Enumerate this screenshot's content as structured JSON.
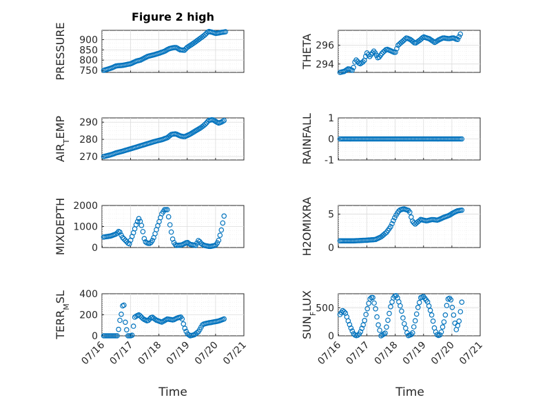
{
  "title": "Figure 2 high",
  "xlabel": "Time",
  "x_ticks": [
    "07/16",
    "07/17",
    "07/18",
    "07/19",
    "07/20",
    "07/21"
  ],
  "colors": {
    "marker": "#0072bd",
    "axes": "#262626",
    "grid": "#dcdcdc"
  },
  "chart_data": [
    {
      "type": "scatter",
      "ylabel": "PRESSURE",
      "ylim": [
        740,
        945
      ],
      "yticks": [
        750,
        800,
        850,
        900
      ],
      "knots": [
        [
          16.05,
          750
        ],
        [
          16.3,
          760
        ],
        [
          16.5,
          772
        ],
        [
          16.7,
          774
        ],
        [
          17.0,
          782
        ],
        [
          17.2,
          795
        ],
        [
          17.35,
          800
        ],
        [
          17.6,
          818
        ],
        [
          17.8,
          825
        ],
        [
          18.0,
          833
        ],
        [
          18.2,
          843
        ],
        [
          18.35,
          855
        ],
        [
          18.5,
          860
        ],
        [
          18.6,
          862
        ],
        [
          18.75,
          850
        ],
        [
          18.9,
          848
        ],
        [
          19.0,
          862
        ],
        [
          19.2,
          880
        ],
        [
          19.4,
          900
        ],
        [
          19.6,
          920
        ],
        [
          19.75,
          940
        ],
        [
          19.9,
          935
        ],
        [
          20.0,
          930
        ],
        [
          20.1,
          932
        ],
        [
          20.2,
          935
        ],
        [
          20.35,
          938
        ]
      ]
    },
    {
      "type": "scatter",
      "ylabel": "THETA",
      "ylim": [
        293.1,
        297.6
      ],
      "yticks": [
        294,
        296
      ],
      "knots": [
        [
          16.05,
          293.1
        ],
        [
          16.2,
          293.2
        ],
        [
          16.35,
          293.5
        ],
        [
          16.5,
          293.3
        ],
        [
          16.6,
          294.5
        ],
        [
          16.75,
          294.0
        ],
        [
          16.9,
          294.3
        ],
        [
          17.0,
          295.2
        ],
        [
          17.1,
          294.8
        ],
        [
          17.25,
          295.4
        ],
        [
          17.4,
          294.6
        ],
        [
          17.55,
          295.2
        ],
        [
          17.7,
          295.6
        ],
        [
          17.85,
          295.4
        ],
        [
          18.0,
          295.2
        ],
        [
          18.1,
          296.0
        ],
        [
          18.25,
          296.4
        ],
        [
          18.4,
          296.8
        ],
        [
          18.55,
          296.6
        ],
        [
          18.7,
          296.2
        ],
        [
          18.85,
          296.5
        ],
        [
          19.0,
          296.9
        ],
        [
          19.2,
          296.7
        ],
        [
          19.4,
          296.3
        ],
        [
          19.55,
          296.6
        ],
        [
          19.7,
          296.8
        ],
        [
          19.9,
          296.7
        ],
        [
          20.05,
          296.8
        ],
        [
          20.2,
          296.6
        ],
        [
          20.3,
          297.2
        ]
      ]
    },
    {
      "type": "scatter",
      "ylabel": "AIR_TEMP",
      "ylabel_main": "AIR",
      "ylabel_sub": "T",
      "ylabel_tail": "EMP",
      "ylim": [
        268,
        292.5
      ],
      "yticks": [
        270,
        280,
        290
      ],
      "knots": [
        [
          16.05,
          270
        ],
        [
          16.3,
          271
        ],
        [
          16.5,
          272.2
        ],
        [
          16.7,
          273
        ],
        [
          17.0,
          274.5
        ],
        [
          17.3,
          276
        ],
        [
          17.6,
          277.5
        ],
        [
          17.9,
          279
        ],
        [
          18.1,
          279.8
        ],
        [
          18.3,
          281
        ],
        [
          18.45,
          283
        ],
        [
          18.6,
          283.2
        ],
        [
          18.75,
          282
        ],
        [
          18.9,
          281.5
        ],
        [
          19.1,
          283
        ],
        [
          19.3,
          285
        ],
        [
          19.5,
          287
        ],
        [
          19.65,
          289
        ],
        [
          19.75,
          291
        ],
        [
          19.9,
          291.5
        ],
        [
          20.0,
          290.5
        ],
        [
          20.1,
          289.5
        ],
        [
          20.2,
          290
        ],
        [
          20.3,
          291
        ]
      ]
    },
    {
      "type": "scatter",
      "ylabel": "RAINFALL",
      "ylim": [
        -1,
        1
      ],
      "yticks": [
        -1,
        0,
        1
      ],
      "knots": [
        [
          16.05,
          0
        ],
        [
          20.35,
          0
        ]
      ]
    },
    {
      "type": "scatter",
      "ylabel": "MIXDEPTH",
      "ylim": [
        0,
        2000
      ],
      "yticks": [
        0,
        1000,
        2000
      ],
      "knots": [
        [
          16.05,
          500
        ],
        [
          16.3,
          550
        ],
        [
          16.5,
          650
        ],
        [
          16.6,
          800
        ],
        [
          16.7,
          500
        ],
        [
          16.85,
          300
        ],
        [
          16.95,
          150
        ],
        [
          17.1,
          700
        ],
        [
          17.2,
          1100
        ],
        [
          17.3,
          1400
        ],
        [
          17.4,
          1000
        ],
        [
          17.5,
          300
        ],
        [
          17.6,
          200
        ],
        [
          17.7,
          200
        ],
        [
          17.8,
          400
        ],
        [
          17.9,
          800
        ],
        [
          18.0,
          1200
        ],
        [
          18.1,
          1600
        ],
        [
          18.2,
          1800
        ],
        [
          18.3,
          1800
        ],
        [
          18.4,
          1000
        ],
        [
          18.5,
          300
        ],
        [
          18.6,
          100
        ],
        [
          18.8,
          120
        ],
        [
          19.0,
          250
        ],
        [
          19.1,
          150
        ],
        [
          19.3,
          100
        ],
        [
          19.4,
          350
        ],
        [
          19.5,
          180
        ],
        [
          19.6,
          100
        ],
        [
          19.8,
          50
        ],
        [
          20.0,
          100
        ],
        [
          20.1,
          300
        ],
        [
          20.2,
          800
        ],
        [
          20.3,
          1500
        ]
      ]
    },
    {
      "type": "scatter",
      "ylabel": "H2OMIXRA",
      "ylim": [
        0,
        6.3
      ],
      "yticks": [
        0,
        5
      ],
      "knots": [
        [
          16.05,
          1
        ],
        [
          16.5,
          1
        ],
        [
          17.0,
          1.1
        ],
        [
          17.3,
          1.2
        ],
        [
          17.5,
          1.6
        ],
        [
          17.7,
          2.3
        ],
        [
          17.85,
          3.2
        ],
        [
          17.95,
          4.2
        ],
        [
          18.05,
          5.0
        ],
        [
          18.15,
          5.6
        ],
        [
          18.3,
          5.8
        ],
        [
          18.5,
          5.5
        ],
        [
          18.6,
          4.0
        ],
        [
          18.7,
          3.5
        ],
        [
          18.9,
          4.2
        ],
        [
          19.1,
          4.0
        ],
        [
          19.3,
          4.2
        ],
        [
          19.5,
          4.1
        ],
        [
          19.7,
          4.5
        ],
        [
          19.9,
          4.8
        ],
        [
          20.05,
          5.2
        ],
        [
          20.2,
          5.5
        ],
        [
          20.35,
          5.6
        ]
      ]
    },
    {
      "type": "scatter",
      "ylabel": "TERR_MSL",
      "ylabel_main": "TERR",
      "ylabel_sub": "M",
      "ylabel_tail": "SL",
      "ylim": [
        0,
        400
      ],
      "yticks": [
        0,
        200,
        400
      ],
      "knots": [
        [
          16.05,
          0
        ],
        [
          16.4,
          0
        ],
        [
          16.55,
          0
        ],
        [
          16.6,
          120
        ],
        [
          16.7,
          240
        ],
        [
          16.75,
          360
        ],
        [
          16.8,
          150
        ],
        [
          16.9,
          0
        ],
        [
          17.05,
          0
        ],
        [
          17.15,
          180
        ],
        [
          17.3,
          200
        ],
        [
          17.45,
          160
        ],
        [
          17.6,
          140
        ],
        [
          17.75,
          180
        ],
        [
          17.9,
          150
        ],
        [
          18.1,
          130
        ],
        [
          18.3,
          160
        ],
        [
          18.5,
          150
        ],
        [
          18.65,
          170
        ],
        [
          18.8,
          180
        ],
        [
          18.9,
          80
        ],
        [
          19.0,
          20
        ],
        [
          19.1,
          0
        ],
        [
          19.25,
          10
        ],
        [
          19.4,
          40
        ],
        [
          19.55,
          110
        ],
        [
          19.7,
          120
        ],
        [
          19.9,
          130
        ],
        [
          20.1,
          140
        ],
        [
          20.3,
          160
        ]
      ]
    },
    {
      "type": "scatter",
      "ylabel": "SUN_FLUX",
      "ylabel_main": "SUN",
      "ylabel_sub": "F",
      "ylabel_tail": "LUX",
      "ylim": [
        0,
        750
      ],
      "yticks": [
        0,
        500
      ],
      "knots": [
        [
          16.05,
          380
        ],
        [
          16.15,
          450
        ],
        [
          16.25,
          400
        ],
        [
          16.35,
          250
        ],
        [
          16.45,
          120
        ],
        [
          16.55,
          20
        ],
        [
          16.65,
          0
        ],
        [
          16.75,
          40
        ],
        [
          16.9,
          230
        ],
        [
          17.0,
          450
        ],
        [
          17.1,
          650
        ],
        [
          17.2,
          700
        ],
        [
          17.3,
          500
        ],
        [
          17.4,
          200
        ],
        [
          17.5,
          0
        ],
        [
          17.65,
          50
        ],
        [
          17.75,
          300
        ],
        [
          17.85,
          550
        ],
        [
          17.95,
          700
        ],
        [
          18.05,
          720
        ],
        [
          18.2,
          500
        ],
        [
          18.3,
          250
        ],
        [
          18.45,
          0
        ],
        [
          18.6,
          30
        ],
        [
          18.7,
          250
        ],
        [
          18.8,
          500
        ],
        [
          18.9,
          680
        ],
        [
          19.0,
          700
        ],
        [
          19.15,
          600
        ],
        [
          19.3,
          350
        ],
        [
          19.4,
          100
        ],
        [
          19.5,
          0
        ],
        [
          19.6,
          20
        ],
        [
          19.75,
          300
        ],
        [
          19.85,
          650
        ],
        [
          19.95,
          680
        ],
        [
          20.05,
          400
        ],
        [
          20.15,
          100
        ],
        [
          20.25,
          250
        ],
        [
          20.35,
          600
        ]
      ]
    }
  ]
}
